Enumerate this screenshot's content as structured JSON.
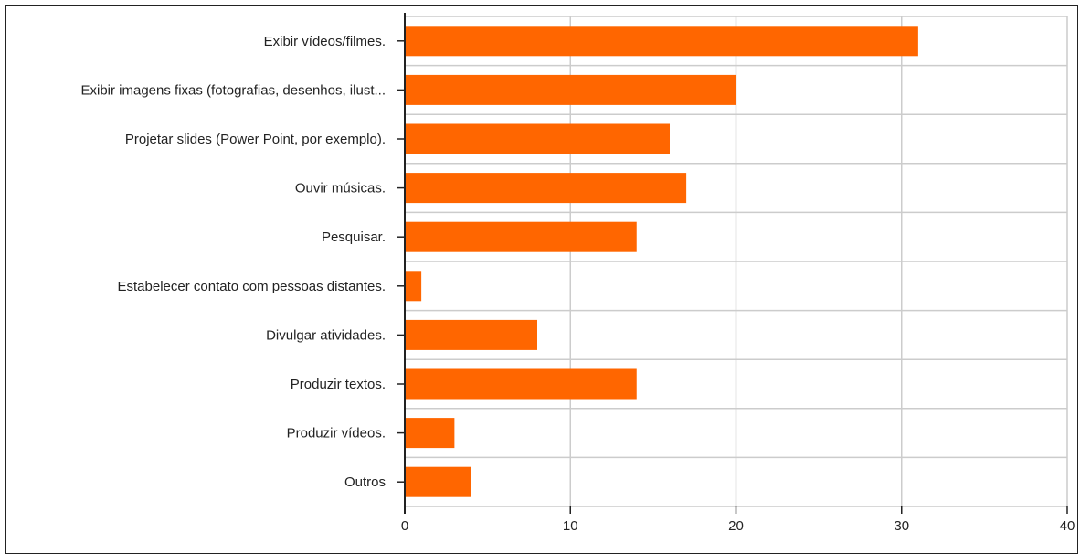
{
  "chart_data": {
    "type": "bar",
    "orientation": "horizontal",
    "categories": [
      "Exibir vídeos/filmes.",
      "Exibir imagens fixas (fotografias, desenhos, ilust...",
      "Projetar slides (Power Point, por exemplo).",
      "Ouvir músicas.",
      "Pesquisar.",
      "Estabelecer contato com pessoas distantes.",
      "Divulgar atividades.",
      "Produzir textos.",
      "Produzir vídeos.",
      "Outros"
    ],
    "values": [
      31,
      20,
      16,
      17,
      14,
      1,
      8,
      14,
      3,
      4
    ],
    "xlim": [
      0,
      40
    ],
    "xticks": [
      "0",
      "10",
      "20",
      "30",
      "40"
    ],
    "grid": true,
    "title": "",
    "xlabel": "",
    "ylabel": "",
    "colors": {
      "bar": "#ff6600",
      "grid": "#cccccc",
      "axis": "#222222"
    }
  }
}
